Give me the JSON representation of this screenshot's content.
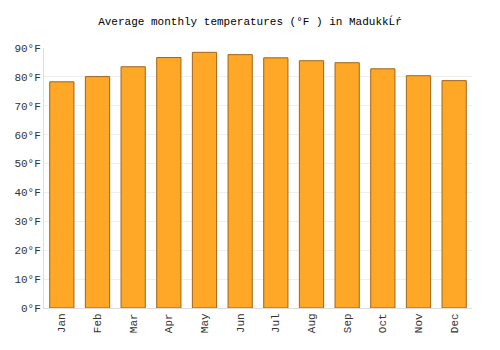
{
  "chart_data": {
    "type": "bar",
    "title": "Average monthly temperatures (°F ) in MadukkĹŕ",
    "categories": [
      "Jan",
      "Feb",
      "Mar",
      "Apr",
      "May",
      "Jun",
      "Jul",
      "Aug",
      "Sep",
      "Oct",
      "Nov",
      "Dec"
    ],
    "values": [
      78.3,
      80.1,
      83.5,
      86.7,
      88.5,
      87.7,
      86.6,
      85.6,
      84.9,
      82.8,
      80.4,
      78.7
    ],
    "color": "#ffa726",
    "ylim": [
      0,
      90
    ],
    "yticks": [
      {
        "value": 0,
        "label": "0°F"
      },
      {
        "value": 10,
        "label": "10°F"
      },
      {
        "value": 20,
        "label": "20°F"
      },
      {
        "value": 30,
        "label": "30°F"
      },
      {
        "value": 40,
        "label": "40°F"
      },
      {
        "value": 50,
        "label": "50°F"
      },
      {
        "value": 60,
        "label": "60°F"
      },
      {
        "value": 70,
        "label": "70°F"
      },
      {
        "value": 80,
        "label": "80°F"
      },
      {
        "value": 90,
        "label": "90°F"
      }
    ],
    "grid": true
  }
}
